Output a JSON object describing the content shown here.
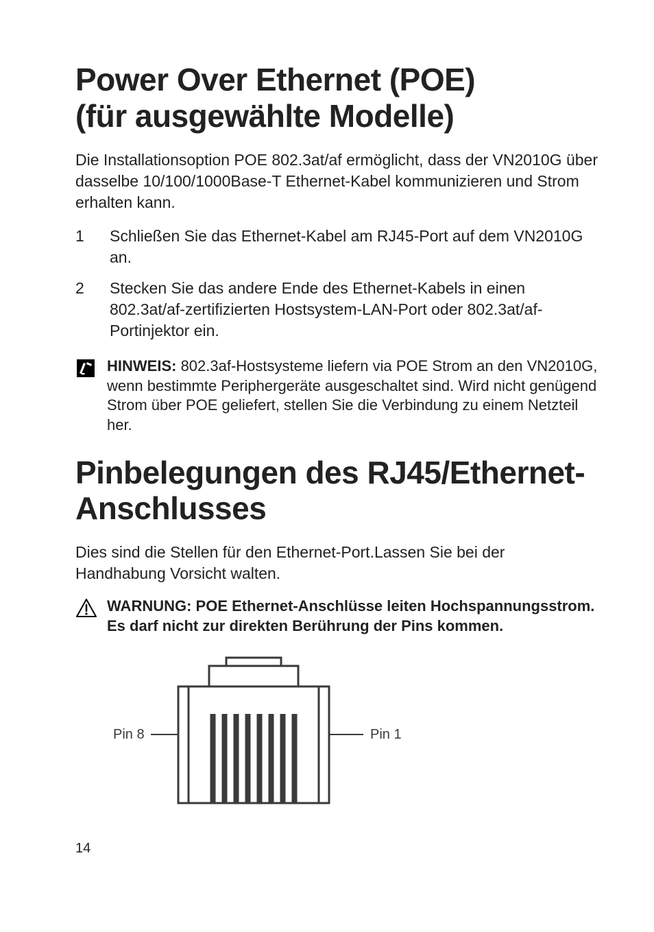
{
  "section1": {
    "heading_line1": "Power Over Ethernet (POE)",
    "heading_line2": "(für ausgewählte Modelle)",
    "intro": "Die Installationsoption POE 802.3at/af ermöglicht, dass der VN2010G über dasselbe 10/100/1000Base-T Ethernet-Kabel kommunizieren und Strom erhalten kann.",
    "steps": [
      {
        "n": "1",
        "t": "Schließen Sie das Ethernet-Kabel am RJ45-Port auf dem VN2010G an."
      },
      {
        "n": "2",
        "t": "Stecken Sie das andere Ende des Ethernet-Kabels in einen 802.3at/af-zertifizierten Hostsystem-LAN-Port oder 802.3at/af-Portinjektor ein."
      }
    ],
    "note_label": "HINWEIS:",
    "note_text": " 802.3af-Hostsysteme liefern via POE Strom an den VN2010G, wenn bestimmte Periphergeräte ausgeschaltet sind. Wird nicht genügend Strom über POE geliefert, stellen Sie die Verbindung zu einem Netzteil her."
  },
  "section2": {
    "heading_line1": "Pinbelegungen des RJ45/Ethernet-",
    "heading_line2": "Anschlusses",
    "intro": "Dies sind die Stellen für den Ethernet-Port.Lassen Sie bei der Handhabung Vorsicht walten.",
    "warn_text": "WARNUNG: POE Ethernet-Anschlüsse leiten Hochspannungsstrom. Es darf nicht zur direkten Berührung der Pins kommen."
  },
  "diagram": {
    "pin_left_label": "Pin 8",
    "pin_right_label": "Pin 1",
    "stroke": "#3a3a3a",
    "label_color": "#3a3a3a",
    "pin_count": 8
  },
  "page_number": "14",
  "icons": {
    "note_bg": "#000000",
    "note_fg": "#ffffff",
    "warn_stroke": "#000000"
  }
}
